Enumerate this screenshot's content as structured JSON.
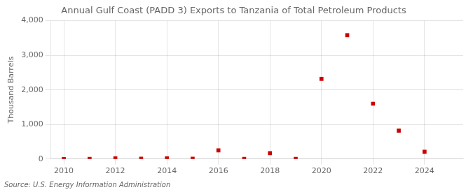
{
  "chart_data": {
    "type": "scatter",
    "title": "Annual Gulf Coast (PADD 3) Exports to Tanzania of Total Petroleum Products",
    "ylabel": "Thousand Barrels",
    "annotations": [
      "Source: U.S. Energy Information Administration"
    ],
    "x": [
      2010,
      2011,
      2012,
      2013,
      2014,
      2015,
      2016,
      2017,
      2018,
      2019,
      2020,
      2021,
      2022,
      2023,
      2024
    ],
    "values": [
      0,
      5,
      20,
      10,
      20,
      10,
      250,
      5,
      170,
      5,
      2320,
      3580,
      1600,
      820,
      210
    ],
    "color": "#cc0000",
    "marker": "square",
    "xlim": [
      2009.5,
      2025.5
    ],
    "ylim": [
      0,
      4000
    ],
    "xticks": [
      2010,
      2012,
      2014,
      2016,
      2018,
      2020,
      2022,
      2024
    ],
    "yticks": [
      0,
      {
        "value": 1000,
        "label": "1,000"
      },
      {
        "value": 2000,
        "label": "2,000"
      },
      {
        "value": 3000,
        "label": "3,000"
      },
      {
        "value": 4000,
        "label": "4,000"
      }
    ],
    "grid": true
  }
}
